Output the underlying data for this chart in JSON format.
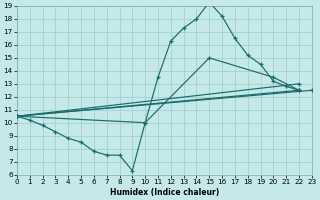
{
  "bg_color": "#c5e8e8",
  "grid_color": "#a8d4d4",
  "line_color": "#1a6b6b",
  "xlim": [
    0,
    23
  ],
  "ylim": [
    6,
    19
  ],
  "xticks": [
    0,
    1,
    2,
    3,
    4,
    5,
    6,
    7,
    8,
    9,
    10,
    11,
    12,
    13,
    14,
    15,
    16,
    17,
    18,
    19,
    20,
    21,
    22,
    23
  ],
  "yticks": [
    6,
    7,
    8,
    9,
    10,
    11,
    12,
    13,
    14,
    15,
    16,
    17,
    18,
    19
  ],
  "xlabel": "Humidex (Indice chaleur)",
  "series": [
    {
      "x": [
        0,
        1,
        2,
        3,
        4,
        5,
        6,
        7,
        8,
        9,
        10,
        11,
        12,
        13,
        14,
        15,
        16,
        17,
        18,
        19,
        20,
        21,
        22
      ],
      "y": [
        10.5,
        10.2,
        9.8,
        9.3,
        8.8,
        8.5,
        7.8,
        7.5,
        7.5,
        6.3,
        10.0,
        13.5,
        16.3,
        17.3,
        18.0,
        19.3,
        18.2,
        16.5,
        15.2,
        14.5,
        13.2,
        12.8,
        12.5
      ]
    },
    {
      "x": [
        0,
        22
      ],
      "y": [
        10.5,
        13.0
      ]
    },
    {
      "x": [
        0,
        22
      ],
      "y": [
        10.5,
        12.5
      ]
    },
    {
      "x": [
        0,
        23
      ],
      "y": [
        10.5,
        12.5
      ]
    },
    {
      "x": [
        0,
        10,
        15,
        20,
        22
      ],
      "y": [
        10.5,
        10.0,
        15.0,
        13.5,
        12.5
      ]
    }
  ]
}
